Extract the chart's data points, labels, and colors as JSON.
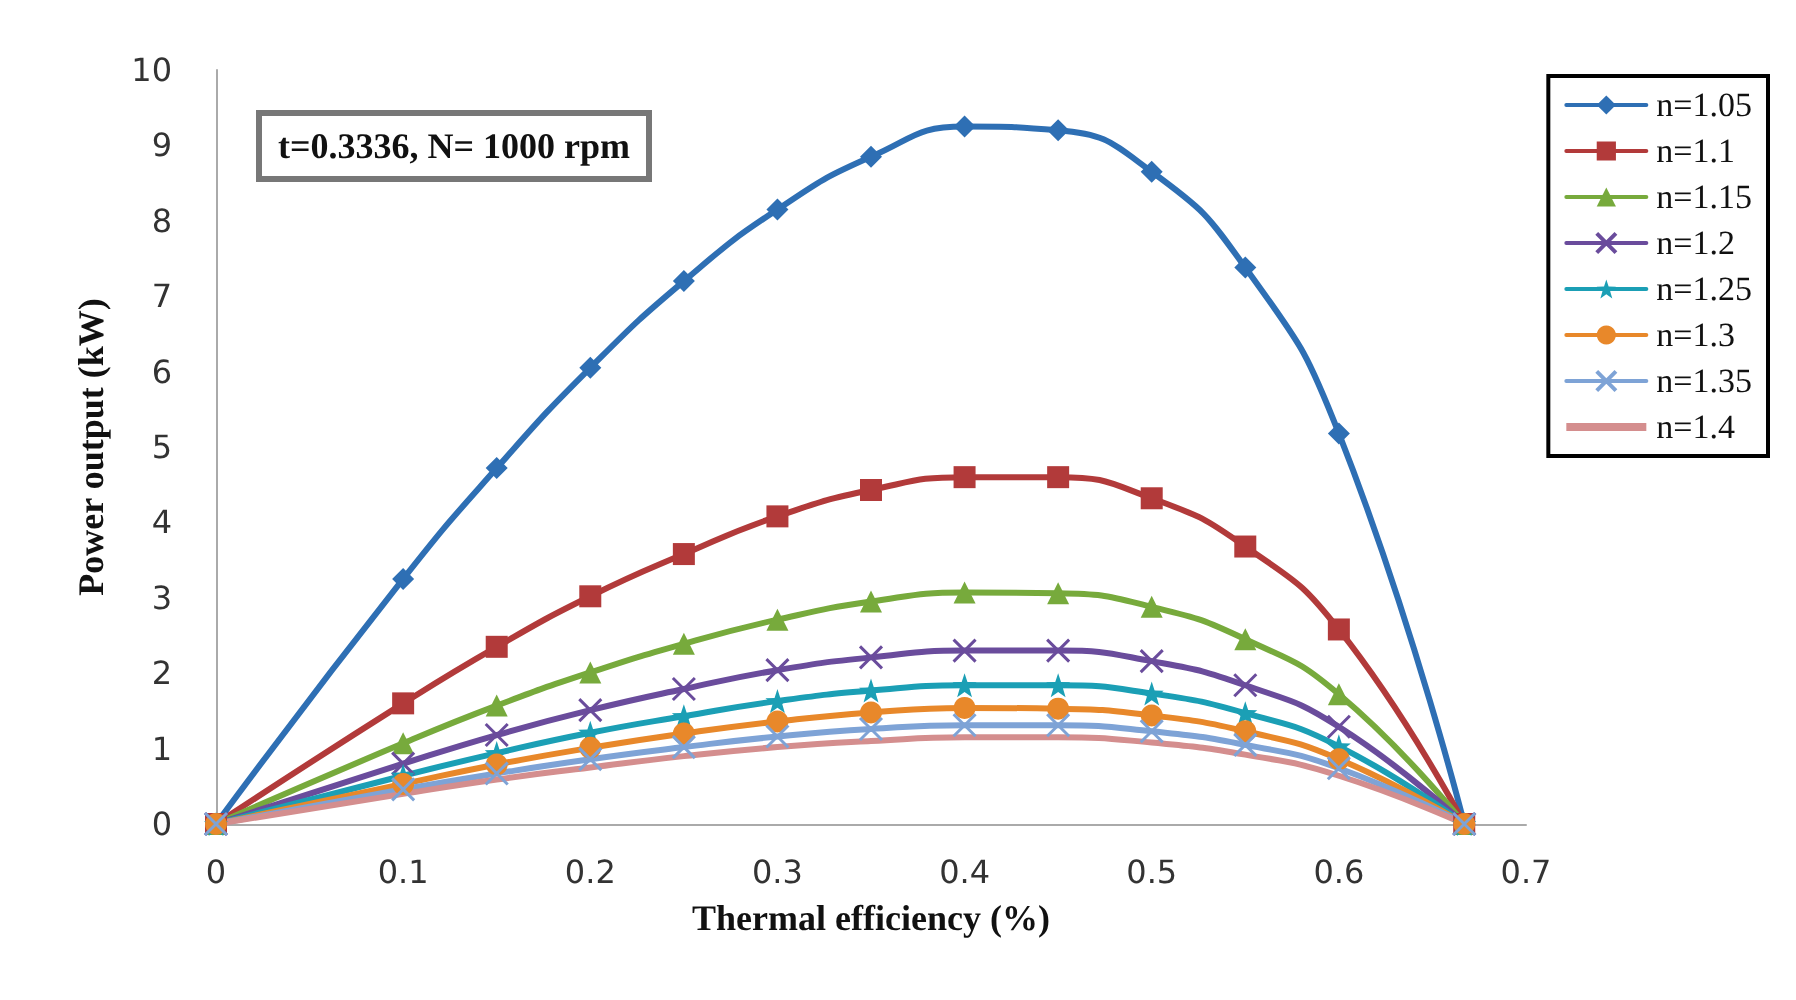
{
  "chart_data": {
    "type": "line",
    "xlabel": "Thermal efficiency (%)",
    "ylabel": "Power output (kW)",
    "annotations": [
      "t=0.3336, N= 1000 rpm"
    ],
    "x": [
      0,
      0.1,
      0.15,
      0.2,
      0.25,
      0.3,
      0.35,
      0.4,
      0.45,
      0.5,
      0.55,
      0.6,
      0.667
    ],
    "xlim": [
      0,
      0.7
    ],
    "xticks": [
      0,
      0.1,
      0.2,
      0.3,
      0.4,
      0.5,
      0.6,
      0.7
    ],
    "ylim": [
      0,
      10
    ],
    "yticks": [
      0,
      1,
      2,
      3,
      4,
      5,
      6,
      7,
      8,
      9,
      10
    ],
    "grid": false,
    "legend": "right",
    "line_style": "solid",
    "series": [
      {
        "name": "n=1.05",
        "color": "#2e6fb4",
        "marker": "diamond",
        "values": [
          0,
          3.25,
          4.72,
          6.05,
          7.2,
          8.15,
          8.85,
          9.25,
          9.2,
          8.65,
          7.38,
          5.18,
          0
        ]
      },
      {
        "name": "n=1.1",
        "color": "#b23a3a",
        "marker": "square",
        "values": [
          0,
          1.6,
          2.35,
          3.02,
          3.58,
          4.08,
          4.43,
          4.6,
          4.6,
          4.32,
          3.68,
          2.58,
          0
        ]
      },
      {
        "name": "n=1.15",
        "color": "#77aa3c",
        "marker": "triangle",
        "values": [
          0,
          1.07,
          1.57,
          2.01,
          2.39,
          2.71,
          2.95,
          3.07,
          3.06,
          2.88,
          2.45,
          1.72,
          0
        ]
      },
      {
        "name": "n=1.2",
        "color": "#6a4c9c",
        "marker": "cross",
        "values": [
          0,
          0.8,
          1.18,
          1.51,
          1.79,
          2.04,
          2.21,
          2.3,
          2.3,
          2.16,
          1.84,
          1.29,
          0
        ]
      },
      {
        "name": "n=1.25",
        "color": "#1b9fb5",
        "marker": "star",
        "values": [
          0,
          0.64,
          0.94,
          1.21,
          1.43,
          1.63,
          1.77,
          1.84,
          1.84,
          1.73,
          1.47,
          1.03,
          0
        ]
      },
      {
        "name": "n=1.3",
        "color": "#e8882a",
        "marker": "circle",
        "values": [
          0,
          0.53,
          0.79,
          1.01,
          1.2,
          1.36,
          1.48,
          1.54,
          1.53,
          1.44,
          1.23,
          0.86,
          0
        ]
      },
      {
        "name": "n=1.35",
        "color": "#7ea3d6",
        "marker": "cross",
        "values": [
          0,
          0.46,
          0.67,
          0.86,
          1.02,
          1.16,
          1.26,
          1.31,
          1.31,
          1.23,
          1.05,
          0.74,
          0
        ]
      },
      {
        "name": "n=1.4",
        "color": "#d48e8e",
        "marker": "none",
        "values": [
          0,
          0.4,
          0.59,
          0.75,
          0.9,
          1.02,
          1.1,
          1.15,
          1.15,
          1.08,
          0.92,
          0.64,
          0
        ]
      }
    ]
  }
}
